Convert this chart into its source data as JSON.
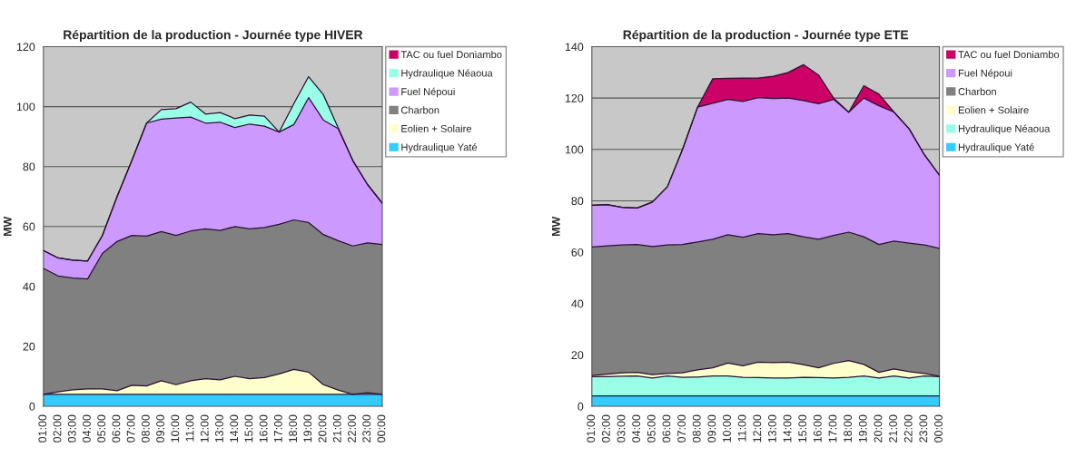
{
  "chart_data": [
    {
      "type": "area",
      "title": "Répartition de la production - Journée type HIVER",
      "ylabel": "MW",
      "stacked": true,
      "grid": "y",
      "legend": "right",
      "ylim": [
        0,
        120
      ],
      "yticks": [
        0,
        20,
        40,
        60,
        80,
        100,
        120
      ],
      "categories": [
        "01:00",
        "02:00",
        "03:00",
        "04:00",
        "05:00",
        "06:00",
        "07:00",
        "08:00",
        "09:00",
        "10:00",
        "11:00",
        "12:00",
        "13:00",
        "14:00",
        "15:00",
        "16:00",
        "17:00",
        "18:00",
        "19:00",
        "20:00",
        "21:00",
        "22:00",
        "23:00",
        "00:00"
      ],
      "series": [
        {
          "name": "Hydraulique Yaté",
          "color": "#33ccff",
          "values": [
            4,
            4,
            4,
            4,
            4,
            4,
            4,
            4,
            4,
            4,
            4,
            4,
            4,
            4,
            4,
            4,
            4,
            4,
            4,
            4,
            4,
            4,
            4,
            4
          ]
        },
        {
          "name": "Eolien + Solaire",
          "color": "#ffffcc",
          "values": [
            0,
            0.8,
            1.5,
            1.8,
            1.8,
            1.2,
            3,
            2.8,
            4.5,
            3.2,
            4.5,
            5.2,
            4.8,
            6,
            5.2,
            5.6,
            6.8,
            8.3,
            7.4,
            3.2,
            1.4,
            0,
            0.5,
            0
          ]
        },
        {
          "name": "Charbon",
          "color": "#808080",
          "values": [
            42,
            38.7,
            37.3,
            36.7,
            45.2,
            49.8,
            50,
            50,
            49.8,
            49.8,
            50,
            50,
            49.9,
            50,
            50,
            50.1,
            49.9,
            49.9,
            49.9,
            50.1,
            49.9,
            49.5,
            50,
            50
          ]
        },
        {
          "name": "Fuel Népoui",
          "color": "#cc99ff",
          "values": [
            6,
            6,
            6,
            6,
            6,
            15,
            25,
            37.7,
            37.5,
            39.2,
            38,
            35.3,
            36.1,
            33,
            35,
            33.8,
            30.8,
            31.8,
            41.7,
            38.2,
            37.4,
            28.5,
            19.5,
            13.8
          ]
        },
        {
          "name": "Hydraulique Néaoua",
          "color": "#99ffe6",
          "values": [
            0,
            0,
            0,
            0,
            0,
            0,
            0,
            0,
            3.2,
            3.1,
            5,
            3,
            3.2,
            3,
            3,
            3.3,
            0,
            7,
            7,
            8.5,
            0.3,
            0,
            0,
            0
          ]
        },
        {
          "name": "TAC ou fuel Doniambo",
          "color": "#cc0066",
          "values": [
            null,
            null,
            null,
            null,
            null,
            null,
            null,
            null,
            null,
            null,
            null,
            null,
            null,
            null,
            null,
            null,
            null,
            null,
            null,
            null,
            null,
            null,
            null,
            null
          ]
        }
      ]
    },
    {
      "type": "area",
      "title": "Répartition de la production - Journée type ETE",
      "ylabel": "MW",
      "stacked": true,
      "grid": "y",
      "legend": "right",
      "ylim": [
        0,
        140
      ],
      "yticks": [
        0,
        20,
        40,
        60,
        80,
        100,
        120,
        140
      ],
      "categories": [
        "01:00",
        "02:00",
        "03:00",
        "04:00",
        "05:00",
        "06:00",
        "07:00",
        "08:00",
        "09:00",
        "10:00",
        "11:00",
        "12:00",
        "13:00",
        "14:00",
        "15:00",
        "16:00",
        "17:00",
        "18:00",
        "19:00",
        "20:00",
        "21:00",
        "22:00",
        "23:00",
        "00:00"
      ],
      "series": [
        {
          "name": "Hydraulique Yaté",
          "color": "#33ccff",
          "values": [
            4,
            4,
            4,
            4,
            4,
            4,
            4,
            4,
            4,
            4,
            4,
            4,
            4,
            4,
            4,
            4,
            4,
            4,
            4,
            4,
            4,
            4,
            4,
            4
          ]
        },
        {
          "name": "Hydraulique Néaoua",
          "color": "#99ffe6",
          "values": [
            7.5,
            7.5,
            7.7,
            7.8,
            7,
            7.8,
            7.3,
            7.4,
            7.8,
            7.8,
            7.3,
            7.2,
            7,
            7,
            7.3,
            7.2,
            7,
            7.3,
            7.8,
            7,
            7.8,
            7,
            7.8,
            7.5
          ]
        },
        {
          "name": "Eolien + Solaire",
          "color": "#ffffcc",
          "values": [
            0.5,
            1,
            1.3,
            1.4,
            1.3,
            1,
            1.7,
            2.8,
            3.2,
            5,
            4.5,
            6,
            6,
            6.2,
            4.9,
            3.8,
            5.7,
            6.5,
            4.5,
            2.2,
            2.7,
            2.5,
            1,
            0.2
          ]
        },
        {
          "name": "Charbon",
          "color": "#808080",
          "values": [
            50,
            50,
            49.8,
            49.8,
            49.9,
            50,
            50,
            49.8,
            50,
            50,
            50,
            50,
            49.8,
            50,
            49.8,
            50,
            49.8,
            50,
            49.7,
            49.8,
            49.8,
            50,
            50,
            49.8
          ]
        },
        {
          "name": "Fuel Népoui",
          "color": "#cc99ff",
          "values": [
            16.3,
            16,
            14.7,
            14.2,
            17.3,
            22.7,
            37,
            52.5,
            53,
            52.7,
            52.9,
            53,
            53,
            52.8,
            53,
            52.8,
            53,
            46.7,
            54,
            54,
            50.2,
            44.5,
            35.2,
            28.5
          ]
        },
        {
          "name": "TAC ou fuel Doniambo",
          "color": "#cc0066",
          "values": [
            0,
            0,
            0,
            0,
            0,
            0,
            0,
            0,
            9.5,
            8.2,
            9.1,
            7.6,
            8.7,
            10,
            14,
            11.2,
            0.5,
            0,
            4.8,
            4.5,
            0,
            0,
            0,
            0
          ]
        }
      ]
    }
  ]
}
